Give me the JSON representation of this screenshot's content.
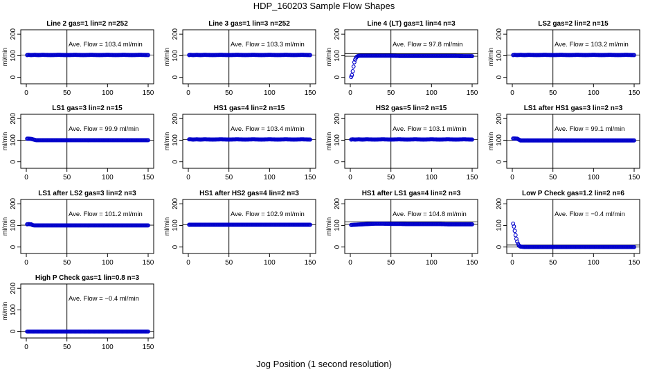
{
  "figure": {
    "title": "HDP_160203  Sample Flow Shapes",
    "xlabel": "Jog Position (1 second resolution)"
  },
  "colors": {
    "points": "#0000cc",
    "axes": "#000000"
  },
  "chart_data": [
    {
      "type": "scatter",
      "title": "Line 2 gas=1 lin=2 n=252",
      "ylabel": "ml/min",
      "annotation": "Ave. Flow = 103.4  ml/min",
      "xlim": [
        0,
        150
      ],
      "ylim": [
        -30,
        220
      ],
      "x_ticks": [
        0,
        50,
        100,
        150
      ],
      "y_ticks": [
        0,
        100,
        200
      ],
      "vline_x": 50,
      "hlines": [
        103.4
      ],
      "points": [
        [
          1,
          103
        ],
        [
          3,
          104
        ],
        [
          6,
          103
        ],
        [
          10,
          104
        ],
        [
          15,
          103
        ],
        [
          20,
          104
        ],
        [
          30,
          103
        ],
        [
          40,
          104
        ],
        [
          50,
          103
        ],
        [
          60,
          104
        ],
        [
          70,
          103
        ],
        [
          80,
          104
        ],
        [
          90,
          103
        ],
        [
          100,
          104
        ],
        [
          110,
          103
        ],
        [
          120,
          104
        ],
        [
          130,
          103
        ],
        [
          140,
          104
        ],
        [
          150,
          103
        ]
      ]
    },
    {
      "type": "scatter",
      "title": "Line 3 gas=1 lin=3 n=252",
      "ylabel": "ml/min",
      "annotation": "Ave. Flow = 103.3  ml/min",
      "xlim": [
        0,
        150
      ],
      "ylim": [
        -30,
        220
      ],
      "x_ticks": [
        0,
        50,
        100,
        150
      ],
      "y_ticks": [
        0,
        100,
        200
      ],
      "vline_x": 50,
      "hlines": [
        103.3
      ],
      "points": [
        [
          1,
          103
        ],
        [
          3,
          104
        ],
        [
          6,
          103
        ],
        [
          10,
          104
        ],
        [
          15,
          103
        ],
        [
          20,
          104
        ],
        [
          30,
          103
        ],
        [
          40,
          104
        ],
        [
          50,
          103
        ],
        [
          60,
          104
        ],
        [
          70,
          103
        ],
        [
          80,
          104
        ],
        [
          90,
          103
        ],
        [
          100,
          104
        ],
        [
          110,
          103
        ],
        [
          120,
          104
        ],
        [
          130,
          103
        ],
        [
          140,
          104
        ],
        [
          150,
          103
        ]
      ]
    },
    {
      "type": "scatter",
      "title": "Line 4 (LT) gas=1 lin=4 n=3",
      "ylabel": "ml/min",
      "annotation": "Ave. Flow = 97.8  ml/min",
      "xlim": [
        0,
        150
      ],
      "ylim": [
        -30,
        220
      ],
      "x_ticks": [
        0,
        50,
        100,
        150
      ],
      "y_ticks": [
        0,
        100,
        200
      ],
      "vline_x": 50,
      "hlines": [
        110,
        97.8
      ],
      "points": [
        [
          1,
          2
        ],
        [
          2,
          10
        ],
        [
          3,
          28
        ],
        [
          4,
          50
        ],
        [
          5,
          70
        ],
        [
          6,
          82
        ],
        [
          7,
          90
        ],
        [
          8,
          95
        ],
        [
          9,
          98
        ],
        [
          10,
          99
        ],
        [
          12,
          100
        ],
        [
          15,
          100
        ],
        [
          20,
          100
        ],
        [
          30,
          100
        ],
        [
          40,
          100
        ],
        [
          50,
          100
        ],
        [
          60,
          99
        ],
        [
          70,
          99
        ],
        [
          80,
          99
        ],
        [
          90,
          99
        ],
        [
          100,
          99
        ],
        [
          110,
          99
        ],
        [
          120,
          99
        ],
        [
          130,
          99
        ],
        [
          140,
          98
        ],
        [
          150,
          98
        ]
      ]
    },
    {
      "type": "scatter",
      "title": "LS2 gas=2 lin=2 n=15",
      "ylabel": "ml/min",
      "annotation": "Ave. Flow = 103.2  ml/min",
      "xlim": [
        0,
        150
      ],
      "ylim": [
        -30,
        220
      ],
      "x_ticks": [
        0,
        50,
        100,
        150
      ],
      "y_ticks": [
        0,
        100,
        200
      ],
      "vline_x": 50,
      "hlines": [
        103.2
      ],
      "points": [
        [
          1,
          103
        ],
        [
          3,
          104
        ],
        [
          6,
          103
        ],
        [
          10,
          104
        ],
        [
          15,
          103
        ],
        [
          20,
          104
        ],
        [
          30,
          103
        ],
        [
          40,
          104
        ],
        [
          50,
          103
        ],
        [
          60,
          104
        ],
        [
          70,
          103
        ],
        [
          80,
          104
        ],
        [
          90,
          103
        ],
        [
          100,
          104
        ],
        [
          110,
          103
        ],
        [
          120,
          104
        ],
        [
          130,
          103
        ],
        [
          140,
          104
        ],
        [
          150,
          103
        ]
      ]
    },
    {
      "type": "scatter",
      "title": "LS1 gas=3 lin=2 n=15",
      "ylabel": "ml/min",
      "annotation": "Ave. Flow = 99.9  ml/min",
      "xlim": [
        0,
        150
      ],
      "ylim": [
        -30,
        220
      ],
      "x_ticks": [
        0,
        50,
        100,
        150
      ],
      "y_ticks": [
        0,
        100,
        200
      ],
      "vline_x": 50,
      "hlines": [
        99.9
      ],
      "points": [
        [
          1,
          107
        ],
        [
          3,
          107
        ],
        [
          6,
          106
        ],
        [
          9,
          103
        ],
        [
          12,
          100
        ],
        [
          15,
          100
        ],
        [
          20,
          100
        ],
        [
          30,
          100
        ],
        [
          40,
          100
        ],
        [
          50,
          100
        ],
        [
          60,
          100
        ],
        [
          70,
          100
        ],
        [
          80,
          100
        ],
        [
          90,
          100
        ],
        [
          100,
          100
        ],
        [
          110,
          100
        ],
        [
          120,
          100
        ],
        [
          130,
          100
        ],
        [
          140,
          100
        ],
        [
          150,
          100
        ]
      ]
    },
    {
      "type": "scatter",
      "title": "HS1 gas=4 lin=2 n=15",
      "ylabel": "ml/min",
      "annotation": "Ave. Flow = 103.4  ml/min",
      "xlim": [
        0,
        150
      ],
      "ylim": [
        -30,
        220
      ],
      "x_ticks": [
        0,
        50,
        100,
        150
      ],
      "y_ticks": [
        0,
        100,
        200
      ],
      "vline_x": 50,
      "hlines": [
        103.4
      ],
      "points": [
        [
          1,
          104
        ],
        [
          3,
          104
        ],
        [
          6,
          103
        ],
        [
          10,
          104
        ],
        [
          15,
          103
        ],
        [
          20,
          104
        ],
        [
          30,
          103
        ],
        [
          40,
          104
        ],
        [
          50,
          103
        ],
        [
          60,
          104
        ],
        [
          70,
          103
        ],
        [
          80,
          104
        ],
        [
          90,
          103
        ],
        [
          100,
          104
        ],
        [
          110,
          103
        ],
        [
          120,
          104
        ],
        [
          130,
          103
        ],
        [
          140,
          104
        ],
        [
          150,
          103
        ]
      ]
    },
    {
      "type": "scatter",
      "title": "HS2 gas=5 lin=2 n=15",
      "ylabel": "ml/min",
      "annotation": "Ave. Flow = 103.1  ml/min",
      "xlim": [
        0,
        150
      ],
      "ylim": [
        -30,
        220
      ],
      "x_ticks": [
        0,
        50,
        100,
        150
      ],
      "y_ticks": [
        0,
        100,
        200
      ],
      "vline_x": 50,
      "hlines": [
        103.1
      ],
      "points": [
        [
          1,
          103
        ],
        [
          3,
          104
        ],
        [
          6,
          103
        ],
        [
          10,
          104
        ],
        [
          15,
          103
        ],
        [
          20,
          104
        ],
        [
          30,
          103
        ],
        [
          40,
          104
        ],
        [
          50,
          103
        ],
        [
          60,
          104
        ],
        [
          70,
          103
        ],
        [
          80,
          104
        ],
        [
          90,
          103
        ],
        [
          100,
          104
        ],
        [
          110,
          103
        ],
        [
          120,
          104
        ],
        [
          130,
          103
        ],
        [
          140,
          104
        ],
        [
          150,
          103
        ]
      ]
    },
    {
      "type": "scatter",
      "title": "LS1 after HS1 gas=3 lin=2 n=3",
      "ylabel": "ml/min",
      "annotation": "Ave. Flow = 99.1  ml/min",
      "xlim": [
        0,
        150
      ],
      "ylim": [
        -30,
        220
      ],
      "x_ticks": [
        0,
        50,
        100,
        150
      ],
      "y_ticks": [
        0,
        100,
        200
      ],
      "vline_x": 50,
      "hlines": [
        99.1
      ],
      "points": [
        [
          1,
          108
        ],
        [
          3,
          108
        ],
        [
          6,
          107
        ],
        [
          8,
          103
        ],
        [
          10,
          99
        ],
        [
          15,
          99
        ],
        [
          20,
          99
        ],
        [
          30,
          99
        ],
        [
          40,
          99
        ],
        [
          50,
          99
        ],
        [
          60,
          99
        ],
        [
          70,
          99
        ],
        [
          80,
          99
        ],
        [
          90,
          99
        ],
        [
          100,
          99
        ],
        [
          110,
          99
        ],
        [
          120,
          99
        ],
        [
          130,
          99
        ],
        [
          140,
          99
        ],
        [
          150,
          99
        ]
      ]
    },
    {
      "type": "scatter",
      "title": "LS1 after LS2 gas=3 lin=2 n=3",
      "ylabel": "ml/min",
      "annotation": "Ave. Flow = 101.2  ml/min",
      "xlim": [
        0,
        150
      ],
      "ylim": [
        -30,
        220
      ],
      "x_ticks": [
        0,
        50,
        100,
        150
      ],
      "y_ticks": [
        0,
        100,
        200
      ],
      "vline_x": 50,
      "hlines": [
        101.2
      ],
      "points": [
        [
          1,
          105
        ],
        [
          3,
          106
        ],
        [
          6,
          105
        ],
        [
          8,
          101
        ],
        [
          10,
          100
        ],
        [
          15,
          100
        ],
        [
          20,
          100
        ],
        [
          30,
          100
        ],
        [
          40,
          100
        ],
        [
          50,
          100
        ],
        [
          60,
          100
        ],
        [
          70,
          100
        ],
        [
          80,
          100
        ],
        [
          90,
          100
        ],
        [
          100,
          100
        ],
        [
          110,
          100
        ],
        [
          120,
          100
        ],
        [
          130,
          100
        ],
        [
          140,
          100
        ],
        [
          150,
          100
        ]
      ]
    },
    {
      "type": "scatter",
      "title": "HS1 after HS2 gas=4 lin=2 n=3",
      "ylabel": "ml/min",
      "annotation": "Ave. Flow = 102.9  ml/min",
      "xlim": [
        0,
        150
      ],
      "ylim": [
        -30,
        220
      ],
      "x_ticks": [
        0,
        50,
        100,
        150
      ],
      "y_ticks": [
        0,
        100,
        200
      ],
      "vline_x": 50,
      "hlines": [
        102.9
      ],
      "points": [
        [
          1,
          103
        ],
        [
          3,
          103
        ],
        [
          6,
          103
        ],
        [
          10,
          103
        ],
        [
          15,
          103
        ],
        [
          20,
          103
        ],
        [
          30,
          103
        ],
        [
          40,
          103
        ],
        [
          50,
          103
        ],
        [
          60,
          103
        ],
        [
          70,
          103
        ],
        [
          80,
          103
        ],
        [
          90,
          103
        ],
        [
          100,
          103
        ],
        [
          110,
          103
        ],
        [
          120,
          103
        ],
        [
          130,
          103
        ],
        [
          140,
          103
        ],
        [
          150,
          103
        ]
      ]
    },
    {
      "type": "scatter",
      "title": "HS1 after LS1 gas=4 lin=2 n=3",
      "ylabel": "ml/min",
      "annotation": "Ave. Flow = 104.8  ml/min",
      "xlim": [
        0,
        150
      ],
      "ylim": [
        -30,
        220
      ],
      "x_ticks": [
        0,
        50,
        100,
        150
      ],
      "y_ticks": [
        0,
        100,
        200
      ],
      "vline_x": 50,
      "hlines": [
        117,
        104.8
      ],
      "points": [
        [
          1,
          102
        ],
        [
          5,
          103
        ],
        [
          10,
          104
        ],
        [
          15,
          105
        ],
        [
          20,
          106
        ],
        [
          25,
          107
        ],
        [
          30,
          108
        ],
        [
          40,
          108
        ],
        [
          50,
          107
        ],
        [
          60,
          107
        ],
        [
          70,
          106
        ],
        [
          80,
          106
        ],
        [
          90,
          106
        ],
        [
          100,
          106
        ],
        [
          110,
          106
        ],
        [
          120,
          105
        ],
        [
          130,
          105
        ],
        [
          140,
          105
        ],
        [
          150,
          105
        ]
      ]
    },
    {
      "type": "scatter",
      "title": "Low P Check gas=1.2 lin=2 n=6",
      "ylabel": "",
      "annotation": "Ave. Flow = −0.4  ml/min",
      "xlim": [
        0,
        150
      ],
      "ylim": [
        -30,
        220
      ],
      "x_ticks": [
        0,
        50,
        100,
        150
      ],
      "y_ticks": [
        0,
        100,
        200
      ],
      "vline_x": 50,
      "hlines": [
        9,
        -0.4
      ],
      "points": [
        [
          1,
          108
        ],
        [
          2,
          95
        ],
        [
          3,
          75
        ],
        [
          4,
          55
        ],
        [
          5,
          38
        ],
        [
          6,
          25
        ],
        [
          7,
          15
        ],
        [
          8,
          8
        ],
        [
          9,
          4
        ],
        [
          10,
          2
        ],
        [
          12,
          1
        ],
        [
          15,
          0
        ],
        [
          20,
          0
        ],
        [
          30,
          0
        ],
        [
          40,
          0
        ],
        [
          50,
          0
        ],
        [
          60,
          0
        ],
        [
          70,
          0
        ],
        [
          80,
          0
        ],
        [
          90,
          0
        ],
        [
          100,
          0
        ],
        [
          110,
          0
        ],
        [
          120,
          0
        ],
        [
          130,
          0
        ],
        [
          140,
          0
        ],
        [
          150,
          0
        ]
      ]
    },
    {
      "type": "scatter",
      "title": "High P Check gas=1 lin=0.8 n=3",
      "ylabel": "ml/min",
      "annotation": "Ave. Flow = −0.4  ml/min",
      "xlim": [
        0,
        150
      ],
      "ylim": [
        -30,
        220
      ],
      "x_ticks": [
        0,
        50,
        100,
        150
      ],
      "y_ticks": [
        0,
        100,
        200
      ],
      "vline_x": 50,
      "hlines": [
        -0.4
      ],
      "points": [
        [
          1,
          0
        ],
        [
          5,
          0
        ],
        [
          10,
          0
        ],
        [
          15,
          0
        ],
        [
          20,
          0
        ],
        [
          30,
          0
        ],
        [
          40,
          0
        ],
        [
          50,
          0
        ],
        [
          60,
          0
        ],
        [
          70,
          0
        ],
        [
          80,
          0
        ],
        [
          90,
          0
        ],
        [
          100,
          0
        ],
        [
          110,
          0
        ],
        [
          120,
          0
        ],
        [
          130,
          0
        ],
        [
          140,
          0
        ],
        [
          150,
          0
        ]
      ]
    }
  ]
}
